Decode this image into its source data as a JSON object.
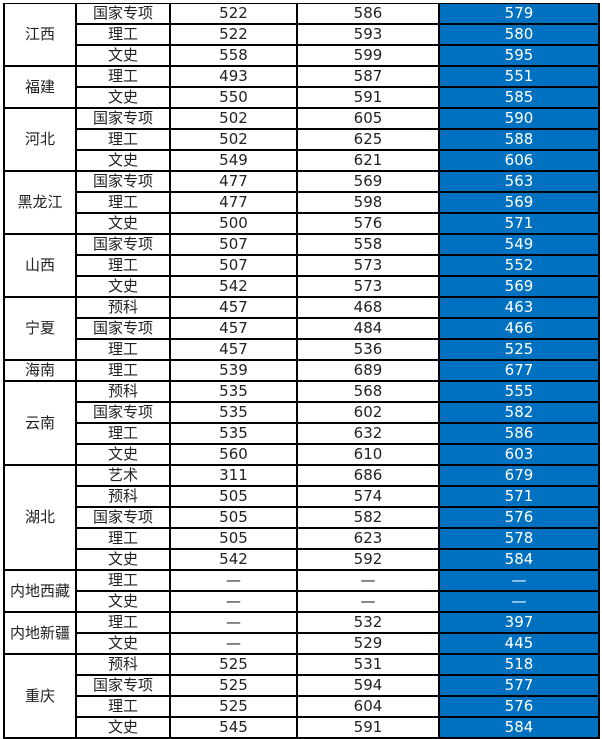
{
  "colors": {
    "highlight": "#0070c0"
  },
  "groups": [
    {
      "province": "江西",
      "rows": [
        [
          "国家专项",
          "522",
          "586",
          "579"
        ],
        [
          "理工",
          "522",
          "593",
          "580"
        ],
        [
          "文史",
          "558",
          "599",
          "595"
        ]
      ]
    },
    {
      "province": "福建",
      "rows": [
        [
          "理工",
          "493",
          "587",
          "551"
        ],
        [
          "文史",
          "550",
          "591",
          "585"
        ]
      ]
    },
    {
      "province": "河北",
      "rows": [
        [
          "国家专项",
          "502",
          "605",
          "590"
        ],
        [
          "理工",
          "502",
          "625",
          "588"
        ],
        [
          "文史",
          "549",
          "621",
          "606"
        ]
      ]
    },
    {
      "province": "黑龙江",
      "rows": [
        [
          "国家专项",
          "477",
          "569",
          "563"
        ],
        [
          "理工",
          "477",
          "598",
          "569"
        ],
        [
          "文史",
          "500",
          "576",
          "571"
        ]
      ]
    },
    {
      "province": "山西",
      "rows": [
        [
          "国家专项",
          "507",
          "558",
          "549"
        ],
        [
          "理工",
          "507",
          "573",
          "552"
        ],
        [
          "文史",
          "542",
          "573",
          "569"
        ]
      ]
    },
    {
      "province": "宁夏",
      "rows": [
        [
          "预科",
          "457",
          "468",
          "463"
        ],
        [
          "国家专项",
          "457",
          "484",
          "466"
        ],
        [
          "理工",
          "457",
          "536",
          "525"
        ]
      ]
    },
    {
      "province": "海南",
      "rows": [
        [
          "理工",
          "539",
          "689",
          "677"
        ]
      ]
    },
    {
      "province": "云南",
      "rows": [
        [
          "预科",
          "535",
          "568",
          "555"
        ],
        [
          "国家专项",
          "535",
          "602",
          "582"
        ],
        [
          "理工",
          "535",
          "632",
          "586"
        ],
        [
          "文史",
          "560",
          "610",
          "603"
        ]
      ]
    },
    {
      "province": "湖北",
      "rows": [
        [
          "艺术",
          "311",
          "686",
          "679"
        ],
        [
          "预科",
          "505",
          "574",
          "571"
        ],
        [
          "国家专项",
          "505",
          "582",
          "576"
        ],
        [
          "理工",
          "505",
          "623",
          "578"
        ],
        [
          "文史",
          "542",
          "592",
          "584"
        ]
      ]
    },
    {
      "province": "内地西藏",
      "rows": [
        [
          "理工",
          "—",
          "—",
          "—"
        ],
        [
          "文史",
          "—",
          "—",
          "—"
        ]
      ]
    },
    {
      "province": "内地新疆",
      "rows": [
        [
          "理工",
          "—",
          "532",
          "397"
        ],
        [
          "文史",
          "—",
          "529",
          "445"
        ]
      ]
    },
    {
      "province": "重庆",
      "rows": [
        [
          "预科",
          "525",
          "531",
          "518"
        ],
        [
          "国家专项",
          "525",
          "594",
          "577"
        ],
        [
          "理工",
          "525",
          "604",
          "576"
        ],
        [
          "文史",
          "545",
          "591",
          "584"
        ]
      ]
    }
  ]
}
